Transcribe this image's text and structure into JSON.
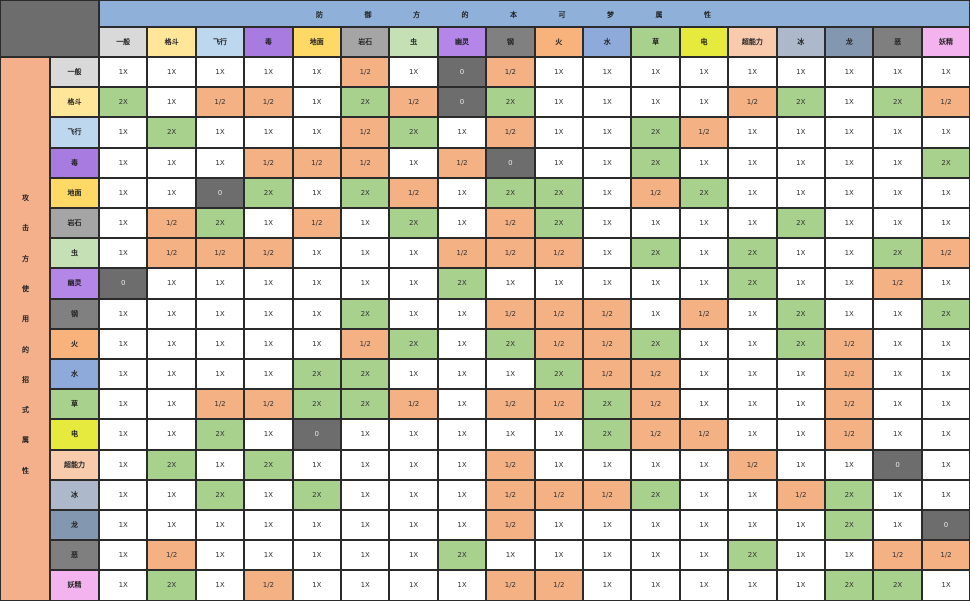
{
  "header_band_text": [
    "防",
    "御",
    "方",
    "的",
    "本",
    "可",
    "梦",
    "属",
    "性"
  ],
  "side_band_text": [
    "攻",
    "击",
    "方",
    "使",
    "用",
    "的",
    "招",
    "式",
    "属",
    "性"
  ],
  "colors": {
    "band_top": "#8fb1d9",
    "band_side": "#f3b08a",
    "neutral": "#ffffff",
    "super": "#a9d18e",
    "half": "#f4b183",
    "immune": "#6d6d6d"
  },
  "types": [
    {
      "name": "一般",
      "color": "#d9d9d9"
    },
    {
      "name": "格斗",
      "color": "#ffe699"
    },
    {
      "name": "飞行",
      "color": "#bdd7ee"
    },
    {
      "name": "毒",
      "color": "#a77be0"
    },
    {
      "name": "地面",
      "color": "#ffd966"
    },
    {
      "name": "岩石",
      "color": "#a5a5a5"
    },
    {
      "name": "虫",
      "color": "#c5e0b4"
    },
    {
      "name": "幽灵",
      "color": "#b486e8"
    },
    {
      "name": "钢",
      "color": "#808080"
    },
    {
      "name": "火",
      "color": "#f8b27c"
    },
    {
      "name": "水",
      "color": "#8eaadb"
    },
    {
      "name": "草",
      "color": "#a9d18e"
    },
    {
      "name": "电",
      "color": "#e6ea3c"
    },
    {
      "name": "超能力",
      "color": "#f8cbad"
    },
    {
      "name": "冰",
      "color": "#adb9ca"
    },
    {
      "name": "龙",
      "color": "#8497b0"
    },
    {
      "name": "恶",
      "color": "#7f7f7f"
    },
    {
      "name": "妖精",
      "color": "#f2b3ee"
    }
  ],
  "matrix": [
    [
      "1X",
      "1X",
      "1X",
      "1X",
      "1X",
      "1/2",
      "1X",
      "0",
      "1/2",
      "1X",
      "1X",
      "1X",
      "1X",
      "1X",
      "1X",
      "1X",
      "1X",
      "1X"
    ],
    [
      "2X",
      "1X",
      "1/2",
      "1/2",
      "1X",
      "2X",
      "1/2",
      "0",
      "2X",
      "1X",
      "1X",
      "1X",
      "1X",
      "1/2",
      "2X",
      "1X",
      "2X",
      "1/2"
    ],
    [
      "1X",
      "2X",
      "1X",
      "1X",
      "1X",
      "1/2",
      "2X",
      "1X",
      "1/2",
      "1X",
      "1X",
      "2X",
      "1/2",
      "1X",
      "1X",
      "1X",
      "1X",
      "1X"
    ],
    [
      "1X",
      "1X",
      "1X",
      "1/2",
      "1/2",
      "1/2",
      "1X",
      "1/2",
      "0",
      "1X",
      "1X",
      "2X",
      "1X",
      "1X",
      "1X",
      "1X",
      "1X",
      "2X"
    ],
    [
      "1X",
      "1X",
      "0",
      "2X",
      "1X",
      "2X",
      "1/2",
      "1X",
      "2X",
      "2X",
      "1X",
      "1/2",
      "2X",
      "1X",
      "1X",
      "1X",
      "1X",
      "1X"
    ],
    [
      "1X",
      "1/2",
      "2X",
      "1X",
      "1/2",
      "1X",
      "2X",
      "1X",
      "1/2",
      "2X",
      "1X",
      "1X",
      "1X",
      "1X",
      "2X",
      "1X",
      "1X",
      "1X"
    ],
    [
      "1X",
      "1/2",
      "1/2",
      "1/2",
      "1X",
      "1X",
      "1X",
      "1/2",
      "1/2",
      "1/2",
      "1X",
      "2X",
      "1X",
      "2X",
      "1X",
      "1X",
      "2X",
      "1/2"
    ],
    [
      "0",
      "1X",
      "1X",
      "1X",
      "1X",
      "1X",
      "1X",
      "2X",
      "1X",
      "1X",
      "1X",
      "1X",
      "1X",
      "2X",
      "1X",
      "1X",
      "1/2",
      "1X"
    ],
    [
      "1X",
      "1X",
      "1X",
      "1X",
      "1X",
      "2X",
      "1X",
      "1X",
      "1/2",
      "1/2",
      "1/2",
      "1X",
      "1/2",
      "1X",
      "2X",
      "1X",
      "1X",
      "2X"
    ],
    [
      "1X",
      "1X",
      "1X",
      "1X",
      "1X",
      "1/2",
      "2X",
      "1X",
      "2X",
      "1/2",
      "1/2",
      "2X",
      "1X",
      "1X",
      "2X",
      "1/2",
      "1X",
      "1X"
    ],
    [
      "1X",
      "1X",
      "1X",
      "1X",
      "2X",
      "2X",
      "1X",
      "1X",
      "1X",
      "2X",
      "1/2",
      "1/2",
      "1X",
      "1X",
      "1X",
      "1/2",
      "1X",
      "1X"
    ],
    [
      "1X",
      "1X",
      "1/2",
      "1/2",
      "2X",
      "2X",
      "1/2",
      "1X",
      "1/2",
      "1/2",
      "2X",
      "1/2",
      "1X",
      "1X",
      "1X",
      "1/2",
      "1X",
      "1X"
    ],
    [
      "1X",
      "1X",
      "2X",
      "1X",
      "0",
      "1X",
      "1X",
      "1X",
      "1X",
      "1X",
      "2X",
      "1/2",
      "1/2",
      "1X",
      "1X",
      "1/2",
      "1X",
      "1X"
    ],
    [
      "1X",
      "2X",
      "1X",
      "2X",
      "1X",
      "1X",
      "1X",
      "1X",
      "1/2",
      "1X",
      "1X",
      "1X",
      "1X",
      "1/2",
      "1X",
      "1X",
      "0",
      "1X"
    ],
    [
      "1X",
      "1X",
      "2X",
      "1X",
      "2X",
      "1X",
      "1X",
      "1X",
      "1/2",
      "1/2",
      "1/2",
      "2X",
      "1X",
      "1X",
      "1/2",
      "2X",
      "1X",
      "1X"
    ],
    [
      "1X",
      "1X",
      "1X",
      "1X",
      "1X",
      "1X",
      "1X",
      "1X",
      "1/2",
      "1X",
      "1X",
      "1X",
      "1X",
      "1X",
      "1X",
      "2X",
      "1X",
      "0"
    ],
    [
      "1X",
      "1/2",
      "1X",
      "1X",
      "1X",
      "1X",
      "1X",
      "2X",
      "1X",
      "1X",
      "1X",
      "1X",
      "1X",
      "2X",
      "1X",
      "1X",
      "1/2",
      "1/2"
    ],
    [
      "1X",
      "2X",
      "1X",
      "1/2",
      "1X",
      "1X",
      "1X",
      "1X",
      "1/2",
      "1/2",
      "1X",
      "1X",
      "1X",
      "1X",
      "1X",
      "2X",
      "2X",
      "1X"
    ]
  ]
}
